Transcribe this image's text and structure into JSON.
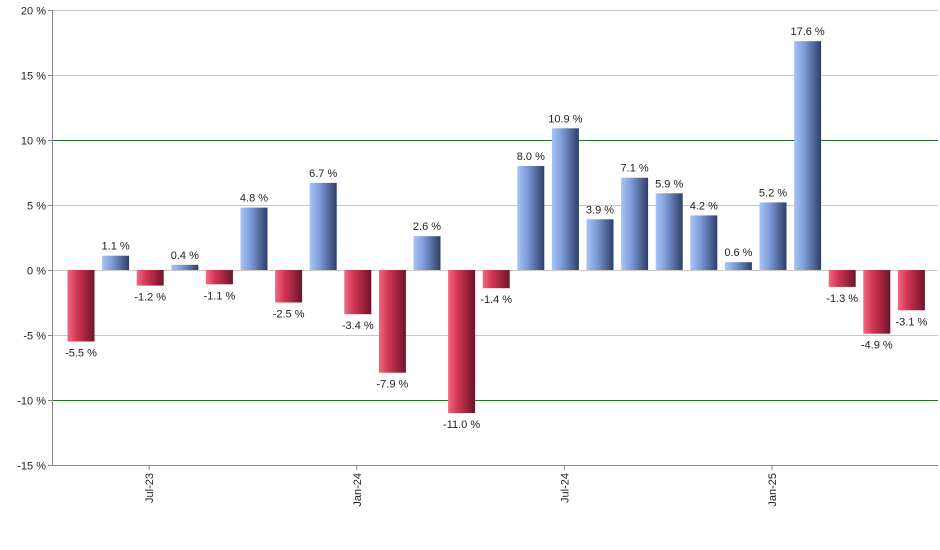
{
  "chart_data": {
    "type": "bar",
    "title": "",
    "xlabel": "",
    "ylabel": "",
    "ylim": [
      -15,
      20
    ],
    "y_ticks": [
      {
        "value": 20,
        "label": "20 %"
      },
      {
        "value": 15,
        "label": "15 %"
      },
      {
        "value": 10,
        "label": "10 %"
      },
      {
        "value": 5,
        "label": "5 %"
      },
      {
        "value": 0,
        "label": "0 %"
      },
      {
        "value": -5,
        "label": "-5 %"
      },
      {
        "value": -10,
        "label": "-10 %"
      },
      {
        "value": -15,
        "label": "-15 %"
      }
    ],
    "highlight_lines": [
      10,
      -10
    ],
    "grid": true,
    "x_tick_labels": [
      {
        "index": 2,
        "label": "Jul-23"
      },
      {
        "index": 8,
        "label": "Jan-24"
      },
      {
        "index": 14,
        "label": "Jul-24"
      },
      {
        "index": 20,
        "label": "Jan-25"
      }
    ],
    "values": [
      -5.5,
      1.1,
      -1.2,
      0.4,
      -1.1,
      4.8,
      -2.5,
      6.7,
      -3.4,
      -7.9,
      2.6,
      -11.0,
      -1.4,
      8.0,
      10.9,
      3.9,
      7.1,
      5.9,
      4.2,
      0.6,
      5.2,
      17.6,
      -1.3,
      -4.9,
      -3.1
    ],
    "labels": [
      "-5.5 %",
      "1.1 %",
      "-1.2 %",
      "0.4 %",
      "-1.1 %",
      "4.8 %",
      "-2.5 %",
      "6.7 %",
      "-3.4 %",
      "-7.9 %",
      "2.6 %",
      "-11.0 %",
      "-1.4 %",
      "8.0 %",
      "10.9 %",
      "3.9 %",
      "7.1 %",
      "5.9 %",
      "4.2 %",
      "0.6 %",
      "5.2 %",
      "17.6 %",
      "-1.3 %",
      "-4.9 %",
      "-3.1 %"
    ],
    "colors": {
      "positive_light": "#a9c4f5",
      "positive_mid": "#7f9fdc",
      "positive_dark": "#2e3e68",
      "negative_light": "#f06a82",
      "negative_mid": "#d23553",
      "negative_dark": "#6e1428",
      "grid": "#c8c8c8",
      "highlight": "#1e7a1e",
      "axis": "#888888"
    }
  }
}
